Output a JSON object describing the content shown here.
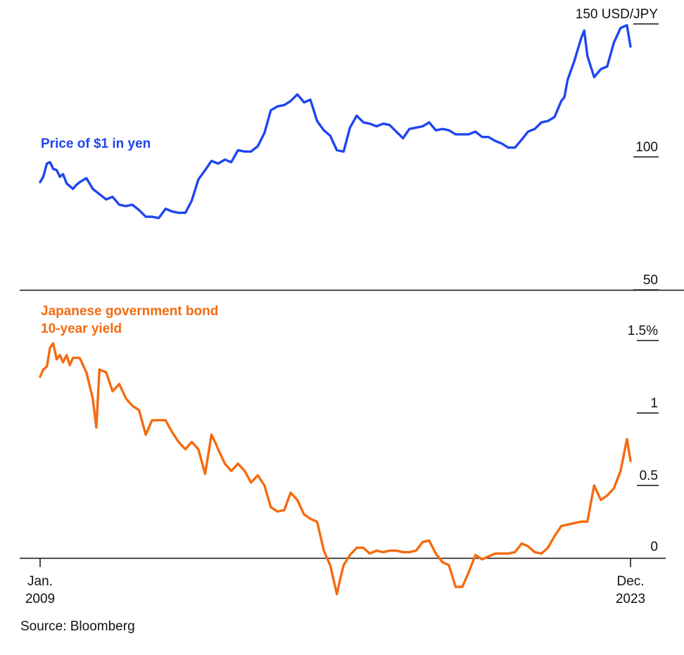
{
  "colors": {
    "blue": "#1f45f0",
    "orange": "#f56a0f",
    "axis": "#111111"
  },
  "source": "Source: Bloomberg",
  "chart_data": [
    {
      "type": "line",
      "series_name": "Price of $1 in yen",
      "unit_label": "USD/JPY",
      "ylim": [
        50,
        150
      ],
      "yticks": [
        {
          "value": 150,
          "label": "150 USD/JPY"
        },
        {
          "value": 100,
          "label": "100"
        },
        {
          "value": 50,
          "label": "50"
        }
      ],
      "x": [
        2009.0,
        2009.08,
        2009.17,
        2009.25,
        2009.33,
        2009.42,
        2009.5,
        2009.58,
        2009.67,
        2009.75,
        2009.83,
        2009.92,
        2010.0,
        2010.17,
        2010.33,
        2010.5,
        2010.67,
        2010.83,
        2011.0,
        2011.17,
        2011.33,
        2011.5,
        2011.67,
        2011.83,
        2012.0,
        2012.17,
        2012.33,
        2012.5,
        2012.67,
        2012.83,
        2013.0,
        2013.17,
        2013.33,
        2013.5,
        2013.67,
        2013.83,
        2014.0,
        2014.17,
        2014.33,
        2014.5,
        2014.67,
        2014.83,
        2015.0,
        2015.17,
        2015.33,
        2015.5,
        2015.67,
        2015.83,
        2016.0,
        2016.17,
        2016.33,
        2016.5,
        2016.67,
        2016.83,
        2017.0,
        2017.17,
        2017.33,
        2017.5,
        2017.67,
        2017.83,
        2018.0,
        2018.17,
        2018.33,
        2018.5,
        2018.67,
        2018.83,
        2019.0,
        2019.17,
        2019.33,
        2019.5,
        2019.67,
        2019.83,
        2020.0,
        2020.17,
        2020.33,
        2020.5,
        2020.67,
        2020.83,
        2021.0,
        2021.17,
        2021.33,
        2021.5,
        2021.67,
        2021.83,
        2022.0,
        2022.17,
        2022.25,
        2022.33,
        2022.5,
        2022.67,
        2022.75,
        2022.83,
        2023.0,
        2023.17,
        2023.33,
        2023.5,
        2023.67,
        2023.83,
        2023.92
      ],
      "values": [
        90.5,
        92.5,
        97.5,
        98,
        95.5,
        95,
        92.5,
        93.5,
        90,
        89,
        88,
        89.5,
        90.5,
        92,
        88,
        86,
        84,
        85,
        82,
        81.5,
        82,
        80,
        77.5,
        77.5,
        77,
        80.5,
        79.5,
        79,
        79,
        83.5,
        91.5,
        95,
        98.5,
        97.5,
        99,
        98,
        102.5,
        102,
        102,
        104,
        109,
        117.5,
        119,
        119.5,
        121,
        123.5,
        120.5,
        121.5,
        113.5,
        110,
        108,
        102.5,
        102,
        111,
        115.5,
        113,
        112.5,
        111.5,
        112.5,
        112,
        109.5,
        107,
        110.5,
        111,
        111.5,
        113,
        110,
        110.5,
        110,
        108.5,
        108.5,
        108.5,
        109.5,
        107.5,
        107.5,
        106,
        105,
        103.5,
        103.5,
        106.5,
        109.5,
        110.5,
        113,
        113.5,
        115,
        121,
        122.5,
        129,
        136,
        144.5,
        147.5,
        138,
        130,
        133,
        134,
        143,
        148.5,
        149.5,
        141.5
      ]
    },
    {
      "type": "line",
      "series_name": "Japanese government bond 10-year yield",
      "unit_label": "%",
      "ylim": [
        0,
        1.5
      ],
      "yticks": [
        {
          "value": 1.5,
          "label": "1.5%"
        },
        {
          "value": 1,
          "label": "1"
        },
        {
          "value": 0.5,
          "label": "0.5"
        },
        {
          "value": 0,
          "label": "0"
        }
      ],
      "xlabels": [
        "Jan.\n2009",
        "Dec.\n2023"
      ],
      "x": [
        2009.0,
        2009.08,
        2009.17,
        2009.25,
        2009.33,
        2009.42,
        2009.5,
        2009.58,
        2009.67,
        2009.75,
        2009.83,
        2009.92,
        2010.0,
        2010.17,
        2010.33,
        2010.42,
        2010.5,
        2010.67,
        2010.83,
        2011.0,
        2011.17,
        2011.33,
        2011.5,
        2011.67,
        2011.83,
        2012.0,
        2012.17,
        2012.33,
        2012.5,
        2012.67,
        2012.83,
        2013.0,
        2013.17,
        2013.33,
        2013.42,
        2013.5,
        2013.67,
        2013.83,
        2014.0,
        2014.17,
        2014.33,
        2014.5,
        2014.67,
        2014.83,
        2015.0,
        2015.17,
        2015.33,
        2015.5,
        2015.67,
        2015.83,
        2016.0,
        2016.17,
        2016.33,
        2016.5,
        2016.58,
        2016.67,
        2016.83,
        2017.0,
        2017.17,
        2017.33,
        2017.5,
        2017.67,
        2017.83,
        2018.0,
        2018.17,
        2018.33,
        2018.5,
        2018.67,
        2018.83,
        2019.0,
        2019.17,
        2019.33,
        2019.5,
        2019.67,
        2019.83,
        2020.0,
        2020.17,
        2020.33,
        2020.5,
        2020.67,
        2020.83,
        2021.0,
        2021.17,
        2021.33,
        2021.5,
        2021.67,
        2021.83,
        2022.0,
        2022.17,
        2022.33,
        2022.5,
        2022.67,
        2022.83,
        2023.0,
        2023.17,
        2023.33,
        2023.5,
        2023.67,
        2023.83,
        2023.92
      ],
      "values": [
        1.25,
        1.3,
        1.32,
        1.45,
        1.48,
        1.37,
        1.4,
        1.35,
        1.4,
        1.33,
        1.38,
        1.38,
        1.38,
        1.28,
        1.1,
        0.9,
        1.3,
        1.28,
        1.15,
        1.2,
        1.1,
        1.05,
        1.02,
        0.85,
        0.95,
        0.95,
        0.95,
        0.87,
        0.8,
        0.75,
        0.8,
        0.75,
        0.58,
        0.85,
        0.8,
        0.75,
        0.65,
        0.6,
        0.65,
        0.6,
        0.52,
        0.57,
        0.5,
        0.35,
        0.32,
        0.33,
        0.45,
        0.4,
        0.3,
        0.27,
        0.25,
        0.05,
        -0.05,
        -0.25,
        -0.15,
        -0.05,
        0.02,
        0.07,
        0.07,
        0.03,
        0.05,
        0.04,
        0.05,
        0.05,
        0.04,
        0.04,
        0.05,
        0.11,
        0.12,
        0.03,
        -0.03,
        -0.05,
        -0.2,
        -0.2,
        -0.1,
        0.02,
        -0.01,
        0.01,
        0.03,
        0.03,
        0.03,
        0.04,
        0.1,
        0.08,
        0.04,
        0.03,
        0.07,
        0.15,
        0.22,
        0.23,
        0.24,
        0.25,
        0.25,
        0.5,
        0.4,
        0.43,
        0.48,
        0.6,
        0.82,
        0.67
      ]
    }
  ]
}
